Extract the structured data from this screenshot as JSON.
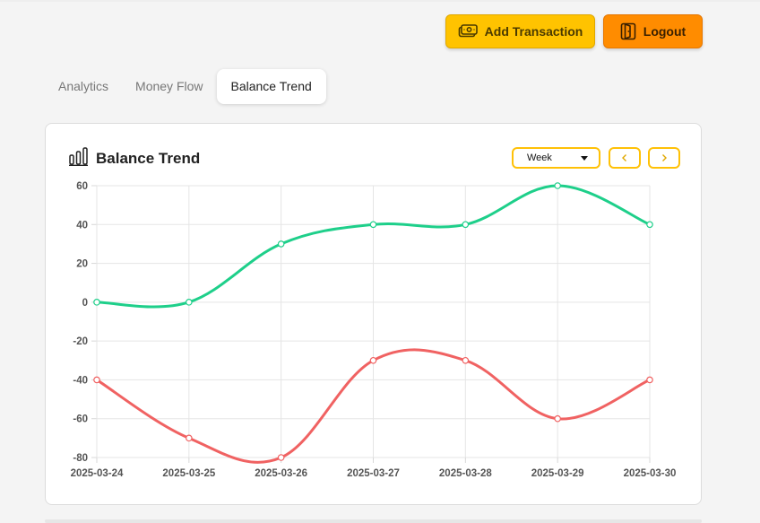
{
  "header": {
    "add_transaction_label": "Add Transaction",
    "logout_label": "Logout"
  },
  "tabs": [
    {
      "label": "Analytics",
      "active": false
    },
    {
      "label": "Money Flow",
      "active": false
    },
    {
      "label": "Balance Trend",
      "active": true
    }
  ],
  "card": {
    "title": "Balance Trend",
    "period_selected": "Week"
  },
  "colors": {
    "accent_yellow": "#ffc300",
    "accent_orange": "#ff8c00",
    "series_income": "#1ecf8a",
    "series_expense": "#f06262"
  },
  "chart_data": {
    "type": "line",
    "title": "Balance Trend",
    "xlabel": "",
    "ylabel": "",
    "categories": [
      "2025-03-24",
      "2025-03-25",
      "2025-03-26",
      "2025-03-27",
      "2025-03-28",
      "2025-03-29",
      "2025-03-30"
    ],
    "ylim": [
      -80,
      60
    ],
    "yticks": [
      60,
      40,
      20,
      0,
      -20,
      -40,
      -60,
      -80
    ],
    "grid": true,
    "legend": "none",
    "series": [
      {
        "name": "Green series",
        "color": "#1ecf8a",
        "values": [
          0,
          0,
          30,
          40,
          40,
          60,
          40
        ]
      },
      {
        "name": "Red series",
        "color": "#f06262",
        "values": [
          -40,
          -70,
          -80,
          -30,
          -30,
          -60,
          -40
        ]
      }
    ]
  }
}
